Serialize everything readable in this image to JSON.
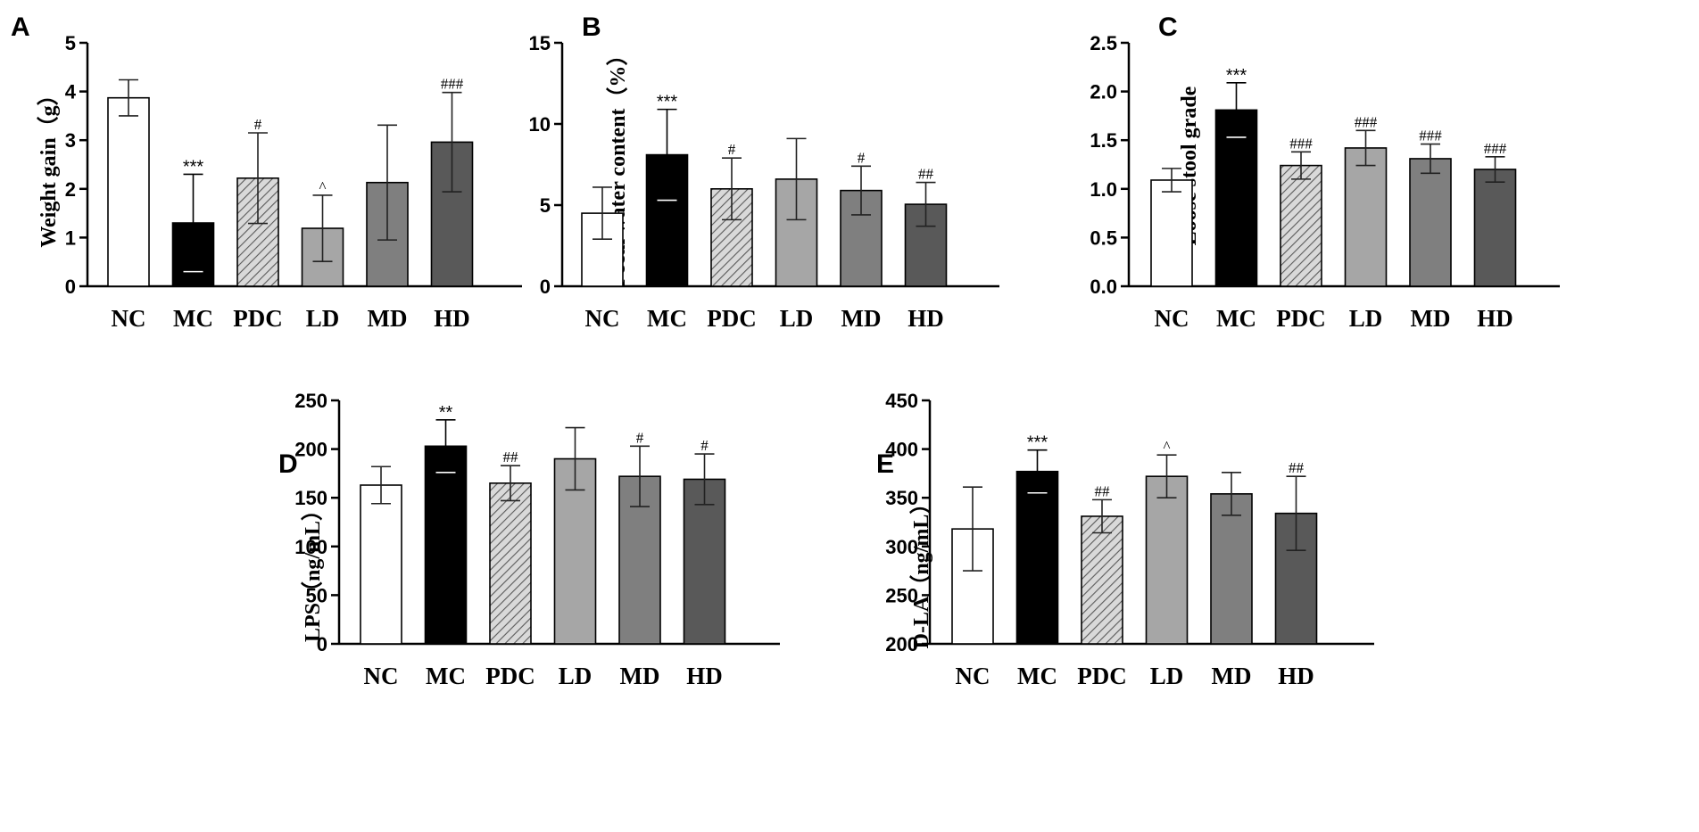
{
  "colors": {
    "NC": "#ffffff",
    "MC": "#000000",
    "PDC": "#d9d9d9",
    "PDC_hatch": "#5a5a5a",
    "LD": "#a6a6a6",
    "MD": "#7f7f7f",
    "HD": "#595959",
    "axis": "#000000"
  },
  "chart_data": [
    {
      "panel": "A",
      "type": "bar",
      "ylabel": "Weight gain（g）",
      "categories": [
        "NC",
        "MC",
        "PDC",
        "LD",
        "MD",
        "HD"
      ],
      "values": [
        3.87,
        1.3,
        2.22,
        1.19,
        2.13,
        2.96
      ],
      "errors": [
        0.37,
        1.0,
        0.93,
        0.68,
        1.18,
        1.02
      ],
      "annotations": [
        "",
        "***",
        "#",
        "^",
        "",
        "###"
      ],
      "ylim": [
        0,
        5
      ],
      "yticks": [
        0,
        1,
        2,
        3,
        4,
        5
      ],
      "ytick_labels": [
        "0",
        "1",
        "2",
        "3",
        "4",
        "5"
      ]
    },
    {
      "panel": "B",
      "type": "bar",
      "ylabel": "Fecal water content（%）",
      "categories": [
        "NC",
        "MC",
        "PDC",
        "LD",
        "MD",
        "HD"
      ],
      "values": [
        4.5,
        8.1,
        6.0,
        6.6,
        5.9,
        5.05
      ],
      "errors": [
        1.6,
        2.8,
        1.9,
        2.5,
        1.5,
        1.35
      ],
      "annotations": [
        "",
        "***",
        "#",
        "",
        "#",
        "##"
      ],
      "ylim": [
        0,
        15
      ],
      "yticks": [
        0,
        5,
        10,
        15
      ],
      "ytick_labels": [
        "0",
        "5",
        "10",
        "15"
      ]
    },
    {
      "panel": "C",
      "type": "bar",
      "ylabel": "Loose stool grade",
      "categories": [
        "NC",
        "MC",
        "PDC",
        "LD",
        "MD",
        "HD"
      ],
      "values": [
        1.09,
        1.81,
        1.24,
        1.42,
        1.31,
        1.2
      ],
      "errors": [
        0.12,
        0.28,
        0.14,
        0.18,
        0.15,
        0.13
      ],
      "annotations": [
        "",
        "***",
        "###",
        "###",
        "###",
        "###"
      ],
      "ylim": [
        0,
        2.5
      ],
      "yticks": [
        0,
        0.5,
        1.0,
        1.5,
        2.0,
        2.5
      ],
      "ytick_labels": [
        "0.0",
        "0.5",
        "1.0",
        "1.5",
        "2.0",
        "2.5"
      ]
    },
    {
      "panel": "D",
      "type": "bar",
      "ylabel": "LPS（ng/mL）",
      "categories": [
        "NC",
        "MC",
        "PDC",
        "LD",
        "MD",
        "HD"
      ],
      "values": [
        163,
        203,
        165,
        190,
        172,
        169
      ],
      "errors": [
        19,
        27,
        18,
        32,
        31,
        26
      ],
      "annotations": [
        "",
        "**",
        "##",
        "",
        "#",
        "#"
      ],
      "ylim": [
        0,
        250
      ],
      "yticks": [
        0,
        50,
        100,
        150,
        200,
        250
      ],
      "ytick_labels": [
        "0",
        "50",
        "100",
        "150",
        "200",
        "250"
      ]
    },
    {
      "panel": "E",
      "type": "bar",
      "ylabel": "D-LA（ng/mL）",
      "categories": [
        "NC",
        "MC",
        "PDC",
        "LD",
        "MD",
        "HD"
      ],
      "values": [
        318,
        377,
        331,
        372,
        354,
        334
      ],
      "errors": [
        43,
        22,
        17,
        22,
        22,
        38
      ],
      "annotations": [
        "",
        "***",
        "##",
        "^",
        "",
        "##"
      ],
      "ylim": [
        200,
        450
      ],
      "yticks": [
        200,
        250,
        300,
        350,
        400,
        450
      ],
      "ytick_labels": [
        "200",
        "250",
        "300",
        "350",
        "400",
        "450"
      ]
    }
  ]
}
